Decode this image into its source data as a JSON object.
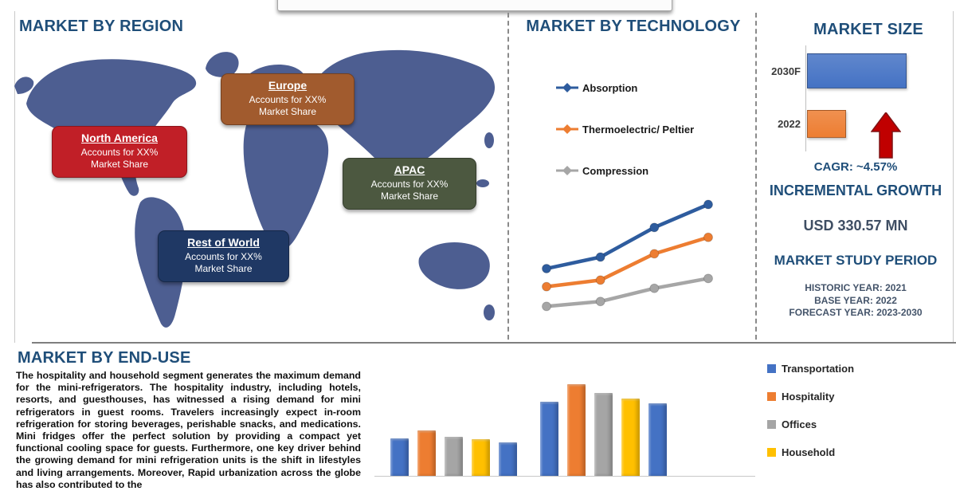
{
  "accent_color": "#1F4E79",
  "region_panel": {
    "title": "MARKET BY REGION",
    "map_color": "#4D5E91",
    "callouts": [
      {
        "id": "europe",
        "name": "Europe",
        "line1": "Accounts for XX%",
        "line2": "Market Share",
        "color": "#A15B2E"
      },
      {
        "id": "north-america",
        "name": "North America",
        "line1": "Accounts for XX%",
        "line2": "Market Share",
        "color": "#C11F27"
      },
      {
        "id": "apac",
        "name": "APAC",
        "line1": "Accounts for XX%",
        "line2": "Market Share",
        "color": "#4C5840"
      },
      {
        "id": "rest-of-world",
        "name": "Rest of World",
        "line1": "Accounts for XX%",
        "line2": "Market Share",
        "color": "#1F3864"
      }
    ]
  },
  "technology_panel": {
    "title": "MARKET BY TECHNOLOGY"
  },
  "market_size_panel": {
    "title": "MARKET SIZE",
    "cagr_label": "CAGR:  ~4.57%",
    "incremental_growth_label": "INCREMENTAL GROWTH",
    "incremental_growth_value": "USD 330.57 MN",
    "study_period_title": "MARKET STUDY PERIOD",
    "study_period_lines": [
      "HISTORIC YEAR: 2021",
      "BASE YEAR: 2022",
      "FORECAST YEAR: 2023-2030"
    ],
    "arrow_color": "#C00000"
  },
  "end_use_panel": {
    "title": "MARKET BY END-USE",
    "paragraph": "The hospitality and household segment generates the maximum demand for the mini-refrigerators. The hospitality industry, including hotels, resorts, and guesthouses, has witnessed a rising demand for mini refrigerators in guest rooms. Travelers increasingly expect in-room refrigeration for storing beverages, perishable snacks, and medications. Mini fridges offer the perfect solution by providing a compact yet functional cooling space for guests. Furthermore, one key driver behind the growing demand for mini refrigeration units is the shift in lifestyles and living arrangements. Moreover, Rapid urbanization across the globe has also contributed to the"
  },
  "chart_data": [
    {
      "id": "technology-trend",
      "type": "line",
      "title": "MARKET BY TECHNOLOGY",
      "x": [
        1,
        2,
        3,
        4
      ],
      "xlabel": "",
      "ylabel": "",
      "ylim": [
        0,
        80
      ],
      "axes_visible": false,
      "grid": false,
      "legend_position": "left",
      "series": [
        {
          "name": "Absorption",
          "color": "#2E5C9E",
          "values": [
            33,
            40,
            58,
            72
          ]
        },
        {
          "name": "Thermoelectric/ Peltier",
          "color": "#ED7D31",
          "values": [
            22,
            26,
            42,
            52
          ]
        },
        {
          "name": "Compression",
          "color": "#A6A6A6",
          "values": [
            10,
            13,
            21,
            27
          ]
        }
      ]
    },
    {
      "id": "market-size",
      "type": "bar",
      "orientation": "horizontal",
      "title": "MARKET SIZE",
      "categories": [
        "2030F",
        "2022"
      ],
      "values": [
        100,
        38
      ],
      "colors": [
        "#4472C4",
        "#ED7D31"
      ],
      "xlim": [
        0,
        100
      ],
      "grid": false
    },
    {
      "id": "end-use",
      "type": "bar",
      "title": "MARKET BY END-USE",
      "categories": [
        "",
        ""
      ],
      "ylim": [
        0,
        100
      ],
      "grid": false,
      "legend_position": "right",
      "series": [
        {
          "name": "Transportation",
          "color": "#4472C4",
          "values": [
            30,
            59
          ]
        },
        {
          "name": "Hospitality",
          "color": "#ED7D31",
          "values": [
            36,
            73
          ]
        },
        {
          "name": "Offices",
          "color": "#A5A5A5",
          "values": [
            31,
            66
          ]
        },
        {
          "name": "Household",
          "color": "#FFC000",
          "values": [
            29,
            62
          ]
        },
        {
          "name": "",
          "color": "#4472C4",
          "values": [
            27,
            58
          ]
        }
      ]
    }
  ]
}
